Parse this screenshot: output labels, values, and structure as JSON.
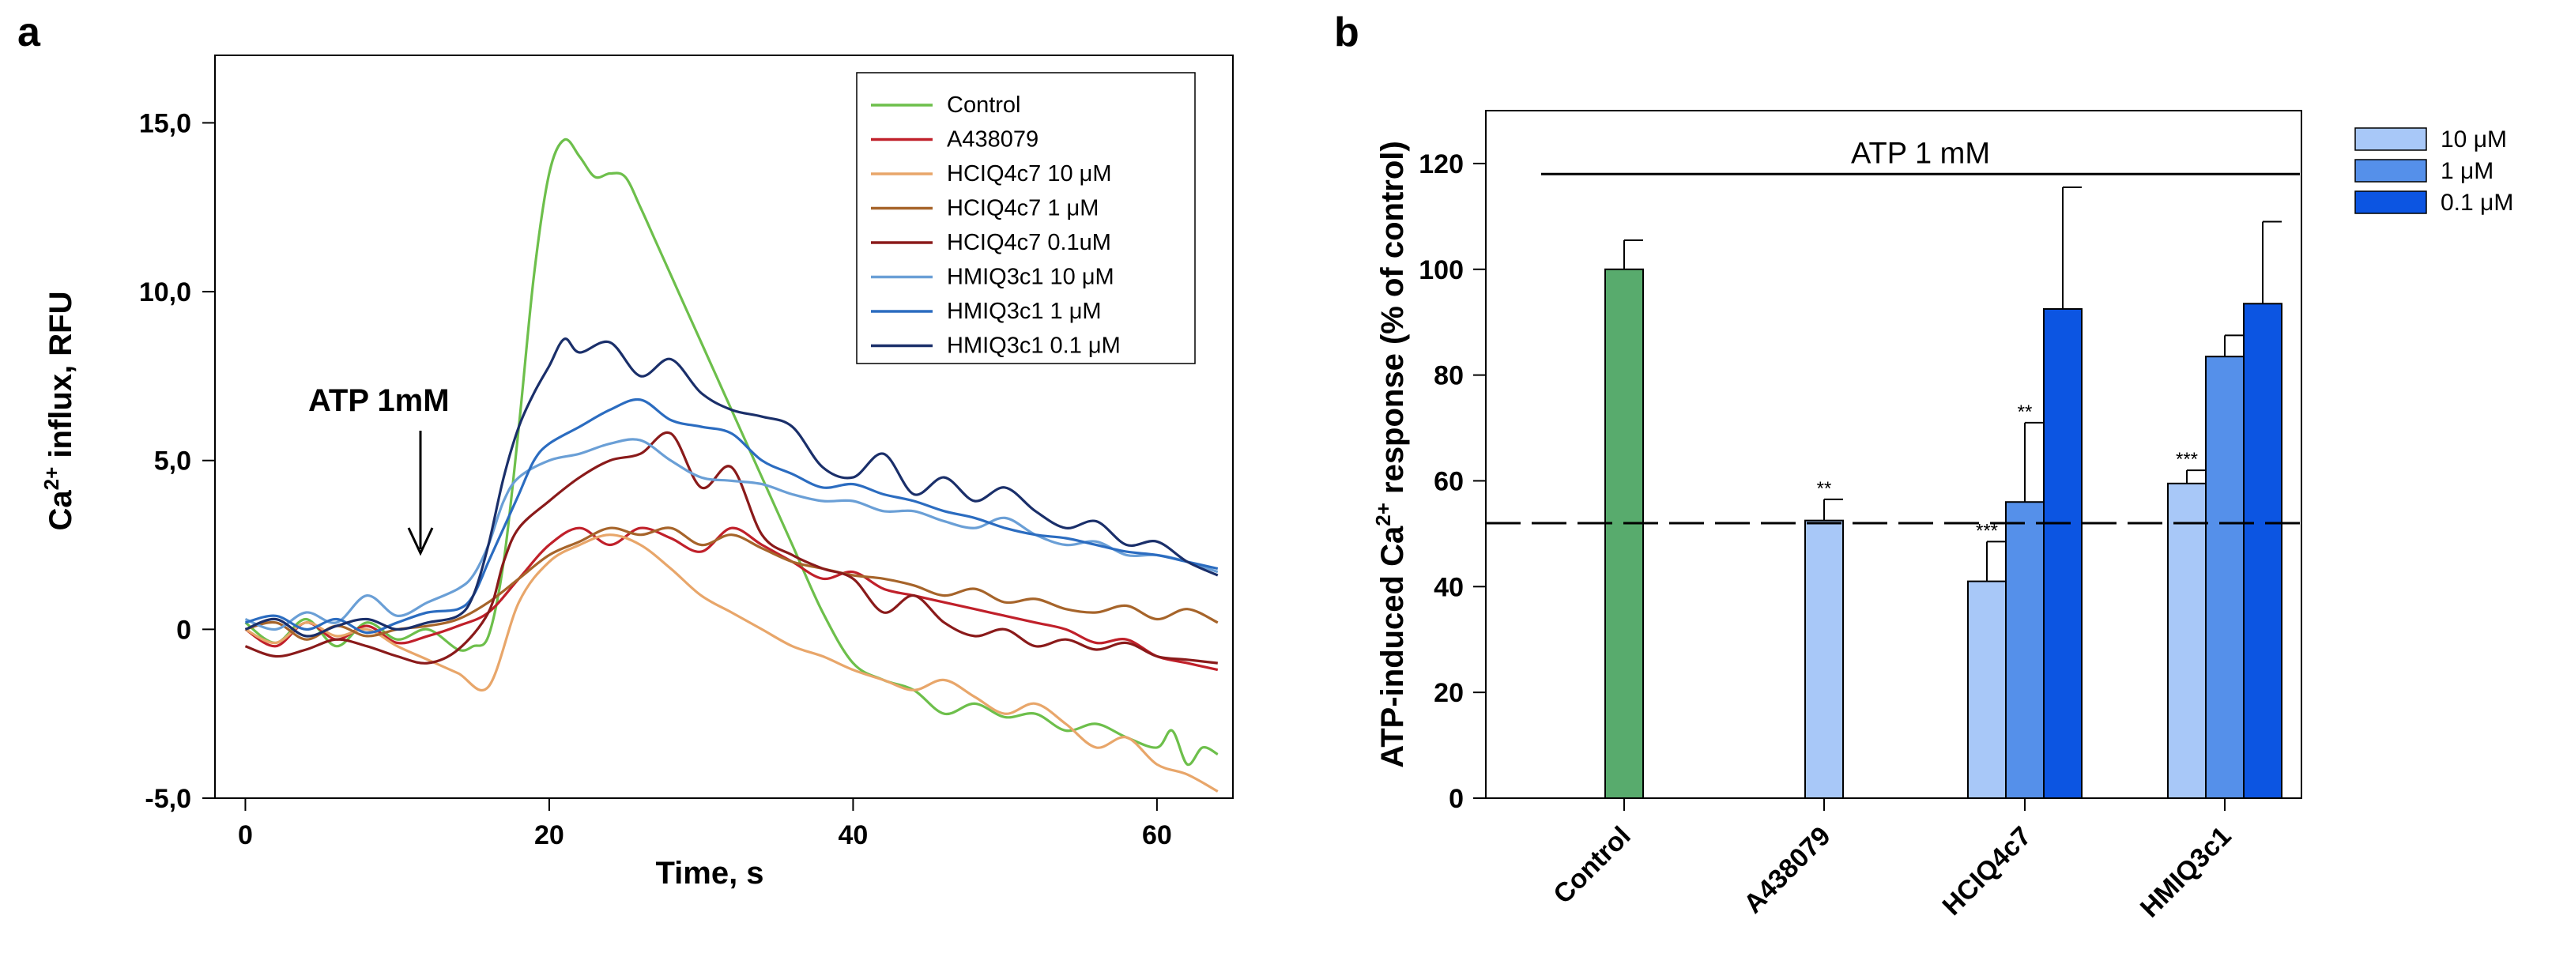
{
  "panel_labels": {
    "a": "a",
    "b": "b"
  },
  "chart_data": [
    {
      "type": "line",
      "panel": "a",
      "title": "",
      "xlabel": "Time, s",
      "ylabel": {
        "pre": "Ca",
        "sup": "2+",
        "post": " influx, RFU"
      },
      "xlim": [
        -2,
        65
      ],
      "ylim": [
        -5,
        17
      ],
      "xticks": [
        0,
        20,
        40,
        60
      ],
      "xtick_labels": [
        "0",
        "20",
        "40",
        "60"
      ],
      "yticks": [
        -5,
        0,
        5,
        10,
        15
      ],
      "ytick_labels": [
        "-5,0",
        "0",
        "5,0",
        "10,0",
        "15,0"
      ],
      "annotation": {
        "text": "ATP 1mM",
        "x": 11,
        "y": 2.3
      },
      "legend_position": "top-right",
      "series": [
        {
          "name": "Control",
          "color": "#6dbf4b",
          "x": [
            0,
            2,
            4,
            6,
            8,
            10,
            12,
            14,
            15,
            16,
            17,
            18,
            19,
            20,
            21,
            22,
            23,
            24,
            25,
            26,
            27,
            28,
            29,
            30,
            31,
            32,
            34,
            36,
            38,
            40,
            42,
            44,
            46,
            48,
            50,
            52,
            54,
            56,
            58,
            60,
            61,
            62,
            63,
            64
          ],
          "y": [
            0.2,
            -0.4,
            0.3,
            -0.5,
            0.2,
            -0.3,
            0.0,
            -0.6,
            -0.5,
            -0.2,
            2.0,
            6.0,
            10.5,
            13.5,
            14.5,
            14.0,
            13.4,
            13.5,
            13.4,
            12.5,
            11.5,
            10.5,
            9.5,
            8.5,
            7.5,
            6.5,
            4.5,
            2.5,
            0.5,
            -1.0,
            -1.5,
            -1.8,
            -2.5,
            -2.2,
            -2.6,
            -2.5,
            -3.0,
            -2.8,
            -3.2,
            -3.5,
            -3.0,
            -4.0,
            -3.5,
            -3.7
          ]
        },
        {
          "name": "A438079",
          "color": "#c0202a",
          "x": [
            0,
            2,
            4,
            6,
            8,
            10,
            12,
            14,
            16,
            18,
            20,
            22,
            24,
            26,
            28,
            30,
            32,
            34,
            36,
            38,
            40,
            42,
            44,
            46,
            48,
            50,
            52,
            54,
            56,
            58,
            60,
            62,
            64
          ],
          "y": [
            0.0,
            -0.5,
            0.2,
            -0.3,
            0.1,
            -0.4,
            -0.2,
            0.1,
            0.5,
            1.5,
            2.5,
            3.0,
            2.5,
            3.0,
            2.7,
            2.3,
            3.0,
            2.5,
            2.0,
            1.5,
            1.7,
            1.2,
            1.0,
            0.8,
            0.6,
            0.4,
            0.2,
            0.0,
            -0.4,
            -0.3,
            -0.8,
            -1.0,
            -1.2
          ]
        },
        {
          "name": "HCIQ4c7 10 μM",
          "color": "#e8a66a",
          "x": [
            0,
            2,
            4,
            6,
            8,
            10,
            12,
            14,
            16,
            18,
            20,
            22,
            24,
            26,
            28,
            30,
            32,
            34,
            36,
            38,
            40,
            42,
            44,
            46,
            48,
            50,
            52,
            54,
            56,
            58,
            60,
            62,
            64
          ],
          "y": [
            0.0,
            -0.4,
            0.2,
            -0.2,
            0.0,
            -0.5,
            -0.9,
            -1.3,
            -1.7,
            0.8,
            2.0,
            2.5,
            2.8,
            2.5,
            1.8,
            1.0,
            0.5,
            0.0,
            -0.5,
            -0.8,
            -1.2,
            -1.5,
            -1.8,
            -1.5,
            -2.0,
            -2.5,
            -2.2,
            -2.8,
            -3.5,
            -3.2,
            -4.0,
            -4.3,
            -4.8
          ]
        },
        {
          "name": "HCIQ4c7 1 μM",
          "color": "#a6642a",
          "x": [
            0,
            2,
            4,
            6,
            8,
            10,
            12,
            14,
            16,
            18,
            20,
            22,
            24,
            26,
            28,
            30,
            32,
            34,
            36,
            38,
            40,
            42,
            44,
            46,
            48,
            50,
            52,
            54,
            56,
            58,
            60,
            62,
            64
          ],
          "y": [
            0.0,
            0.2,
            -0.3,
            0.1,
            -0.2,
            0.0,
            0.1,
            0.3,
            0.8,
            1.5,
            2.2,
            2.6,
            3.0,
            2.8,
            3.0,
            2.5,
            2.8,
            2.4,
            2.0,
            1.8,
            1.6,
            1.5,
            1.3,
            1.0,
            1.2,
            0.8,
            0.9,
            0.6,
            0.5,
            0.7,
            0.3,
            0.6,
            0.2
          ]
        },
        {
          "name": "HCIQ4c7 0.1uM",
          "color": "#8a1a1a",
          "x": [
            0,
            2,
            4,
            6,
            8,
            10,
            12,
            14,
            16,
            17,
            18,
            20,
            22,
            24,
            26,
            28,
            30,
            32,
            34,
            36,
            38,
            40,
            42,
            44,
            46,
            48,
            50,
            52,
            54,
            56,
            58,
            60,
            62,
            64
          ],
          "y": [
            -0.5,
            -0.8,
            -0.6,
            -0.3,
            -0.5,
            -0.8,
            -1.0,
            -0.6,
            0.5,
            2.0,
            3.0,
            3.8,
            4.5,
            5.0,
            5.2,
            5.8,
            4.2,
            4.8,
            2.8,
            2.2,
            1.8,
            1.5,
            0.5,
            1.0,
            0.2,
            -0.2,
            0.0,
            -0.5,
            -0.3,
            -0.6,
            -0.4,
            -0.8,
            -0.9,
            -1.0
          ]
        },
        {
          "name": "HMIQ3c1 10 μM",
          "color": "#6a9fd6",
          "x": [
            0,
            2,
            4,
            6,
            8,
            10,
            12,
            14,
            15,
            16,
            17,
            18,
            20,
            22,
            24,
            26,
            28,
            30,
            32,
            34,
            36,
            38,
            40,
            42,
            44,
            46,
            48,
            50,
            52,
            54,
            56,
            58,
            60,
            62,
            64
          ],
          "y": [
            0.3,
            0.0,
            0.5,
            0.2,
            1.0,
            0.4,
            0.8,
            1.2,
            1.6,
            2.5,
            3.8,
            4.5,
            5.0,
            5.2,
            5.5,
            5.6,
            5.0,
            4.5,
            4.4,
            4.3,
            4.0,
            3.8,
            3.8,
            3.5,
            3.5,
            3.2,
            3.0,
            3.3,
            2.8,
            2.5,
            2.6,
            2.2,
            2.2,
            2.0,
            1.7
          ]
        },
        {
          "name": "HMIQ3c1 1 μM",
          "color": "#2b6cc0",
          "x": [
            0,
            2,
            4,
            6,
            8,
            10,
            12,
            14,
            15,
            16,
            17,
            18,
            19,
            20,
            22,
            24,
            26,
            28,
            30,
            32,
            34,
            36,
            38,
            40,
            42,
            44,
            46,
            48,
            50,
            52,
            54,
            56,
            58,
            60,
            62,
            64
          ],
          "y": [
            0.2,
            0.4,
            0.0,
            0.3,
            -0.1,
            0.2,
            0.5,
            0.6,
            1.0,
            2.0,
            3.0,
            4.0,
            5.0,
            5.5,
            6.0,
            6.5,
            6.8,
            6.2,
            6.0,
            5.8,
            5.0,
            4.6,
            4.2,
            4.3,
            4.0,
            3.8,
            3.5,
            3.3,
            3.0,
            2.8,
            2.7,
            2.5,
            2.3,
            2.2,
            2.0,
            1.8
          ]
        },
        {
          "name": "HMIQ3c1 0.1 μM",
          "color": "#1a2f6a",
          "x": [
            0,
            2,
            4,
            6,
            8,
            10,
            12,
            14,
            15,
            16,
            17,
            18,
            19,
            20,
            21,
            22,
            24,
            26,
            28,
            30,
            32,
            34,
            36,
            38,
            40,
            42,
            44,
            46,
            48,
            50,
            52,
            54,
            56,
            58,
            60,
            62,
            64
          ],
          "y": [
            0.0,
            0.3,
            -0.2,
            0.1,
            0.3,
            0.0,
            0.2,
            0.4,
            1.0,
            2.5,
            4.5,
            6.0,
            7.0,
            7.8,
            8.6,
            8.2,
            8.5,
            7.5,
            8.0,
            7.0,
            6.5,
            6.3,
            6.0,
            4.8,
            4.5,
            5.2,
            4.0,
            4.5,
            3.8,
            4.2,
            3.5,
            3.0,
            3.2,
            2.5,
            2.6,
            2.0,
            1.6
          ]
        }
      ]
    },
    {
      "type": "bar",
      "panel": "b",
      "title": "",
      "xlabel": "",
      "ylabel": {
        "pre": "ATP-induced Ca",
        "sup": "2+",
        "post": " response (% of control)"
      },
      "ylim": [
        0,
        130
      ],
      "yticks": [
        0,
        20,
        40,
        60,
        80,
        100,
        120
      ],
      "ytick_labels": [
        "0",
        "20",
        "40",
        "60",
        "80",
        "100",
        "120"
      ],
      "categories": [
        "Control",
        "A438079",
        "HCIQ4c7",
        "HMIQ3c1"
      ],
      "bracket": {
        "text": "ATP 1 mM",
        "y": 118
      },
      "reference_line": {
        "y": 52,
        "style": "dashed"
      },
      "legend_position": "top-right-outside",
      "series": [
        {
          "name": "10 μM",
          "color": "#a8c8f8",
          "values": [
            null,
            52.5,
            41,
            59.5
          ],
          "errors": [
            null,
            4,
            7.5,
            2.5
          ],
          "significance": [
            "",
            "**",
            "***",
            "***"
          ]
        },
        {
          "name": "1 μM",
          "color": "#5590ea",
          "values": [
            null,
            null,
            56,
            83.5
          ],
          "errors": [
            null,
            null,
            15,
            4
          ],
          "significance": [
            "",
            "",
            "**",
            ""
          ]
        },
        {
          "name": "0.1 μM",
          "color": "#0c55e2",
          "values": [
            null,
            null,
            92.5,
            93.5
          ],
          "errors": [
            null,
            null,
            23,
            15.5
          ],
          "significance": [
            "",
            "",
            "",
            ""
          ]
        }
      ],
      "control_bar": {
        "category": "Control",
        "value": 100,
        "error": 5.5,
        "color": "#58ab6d"
      }
    }
  ]
}
